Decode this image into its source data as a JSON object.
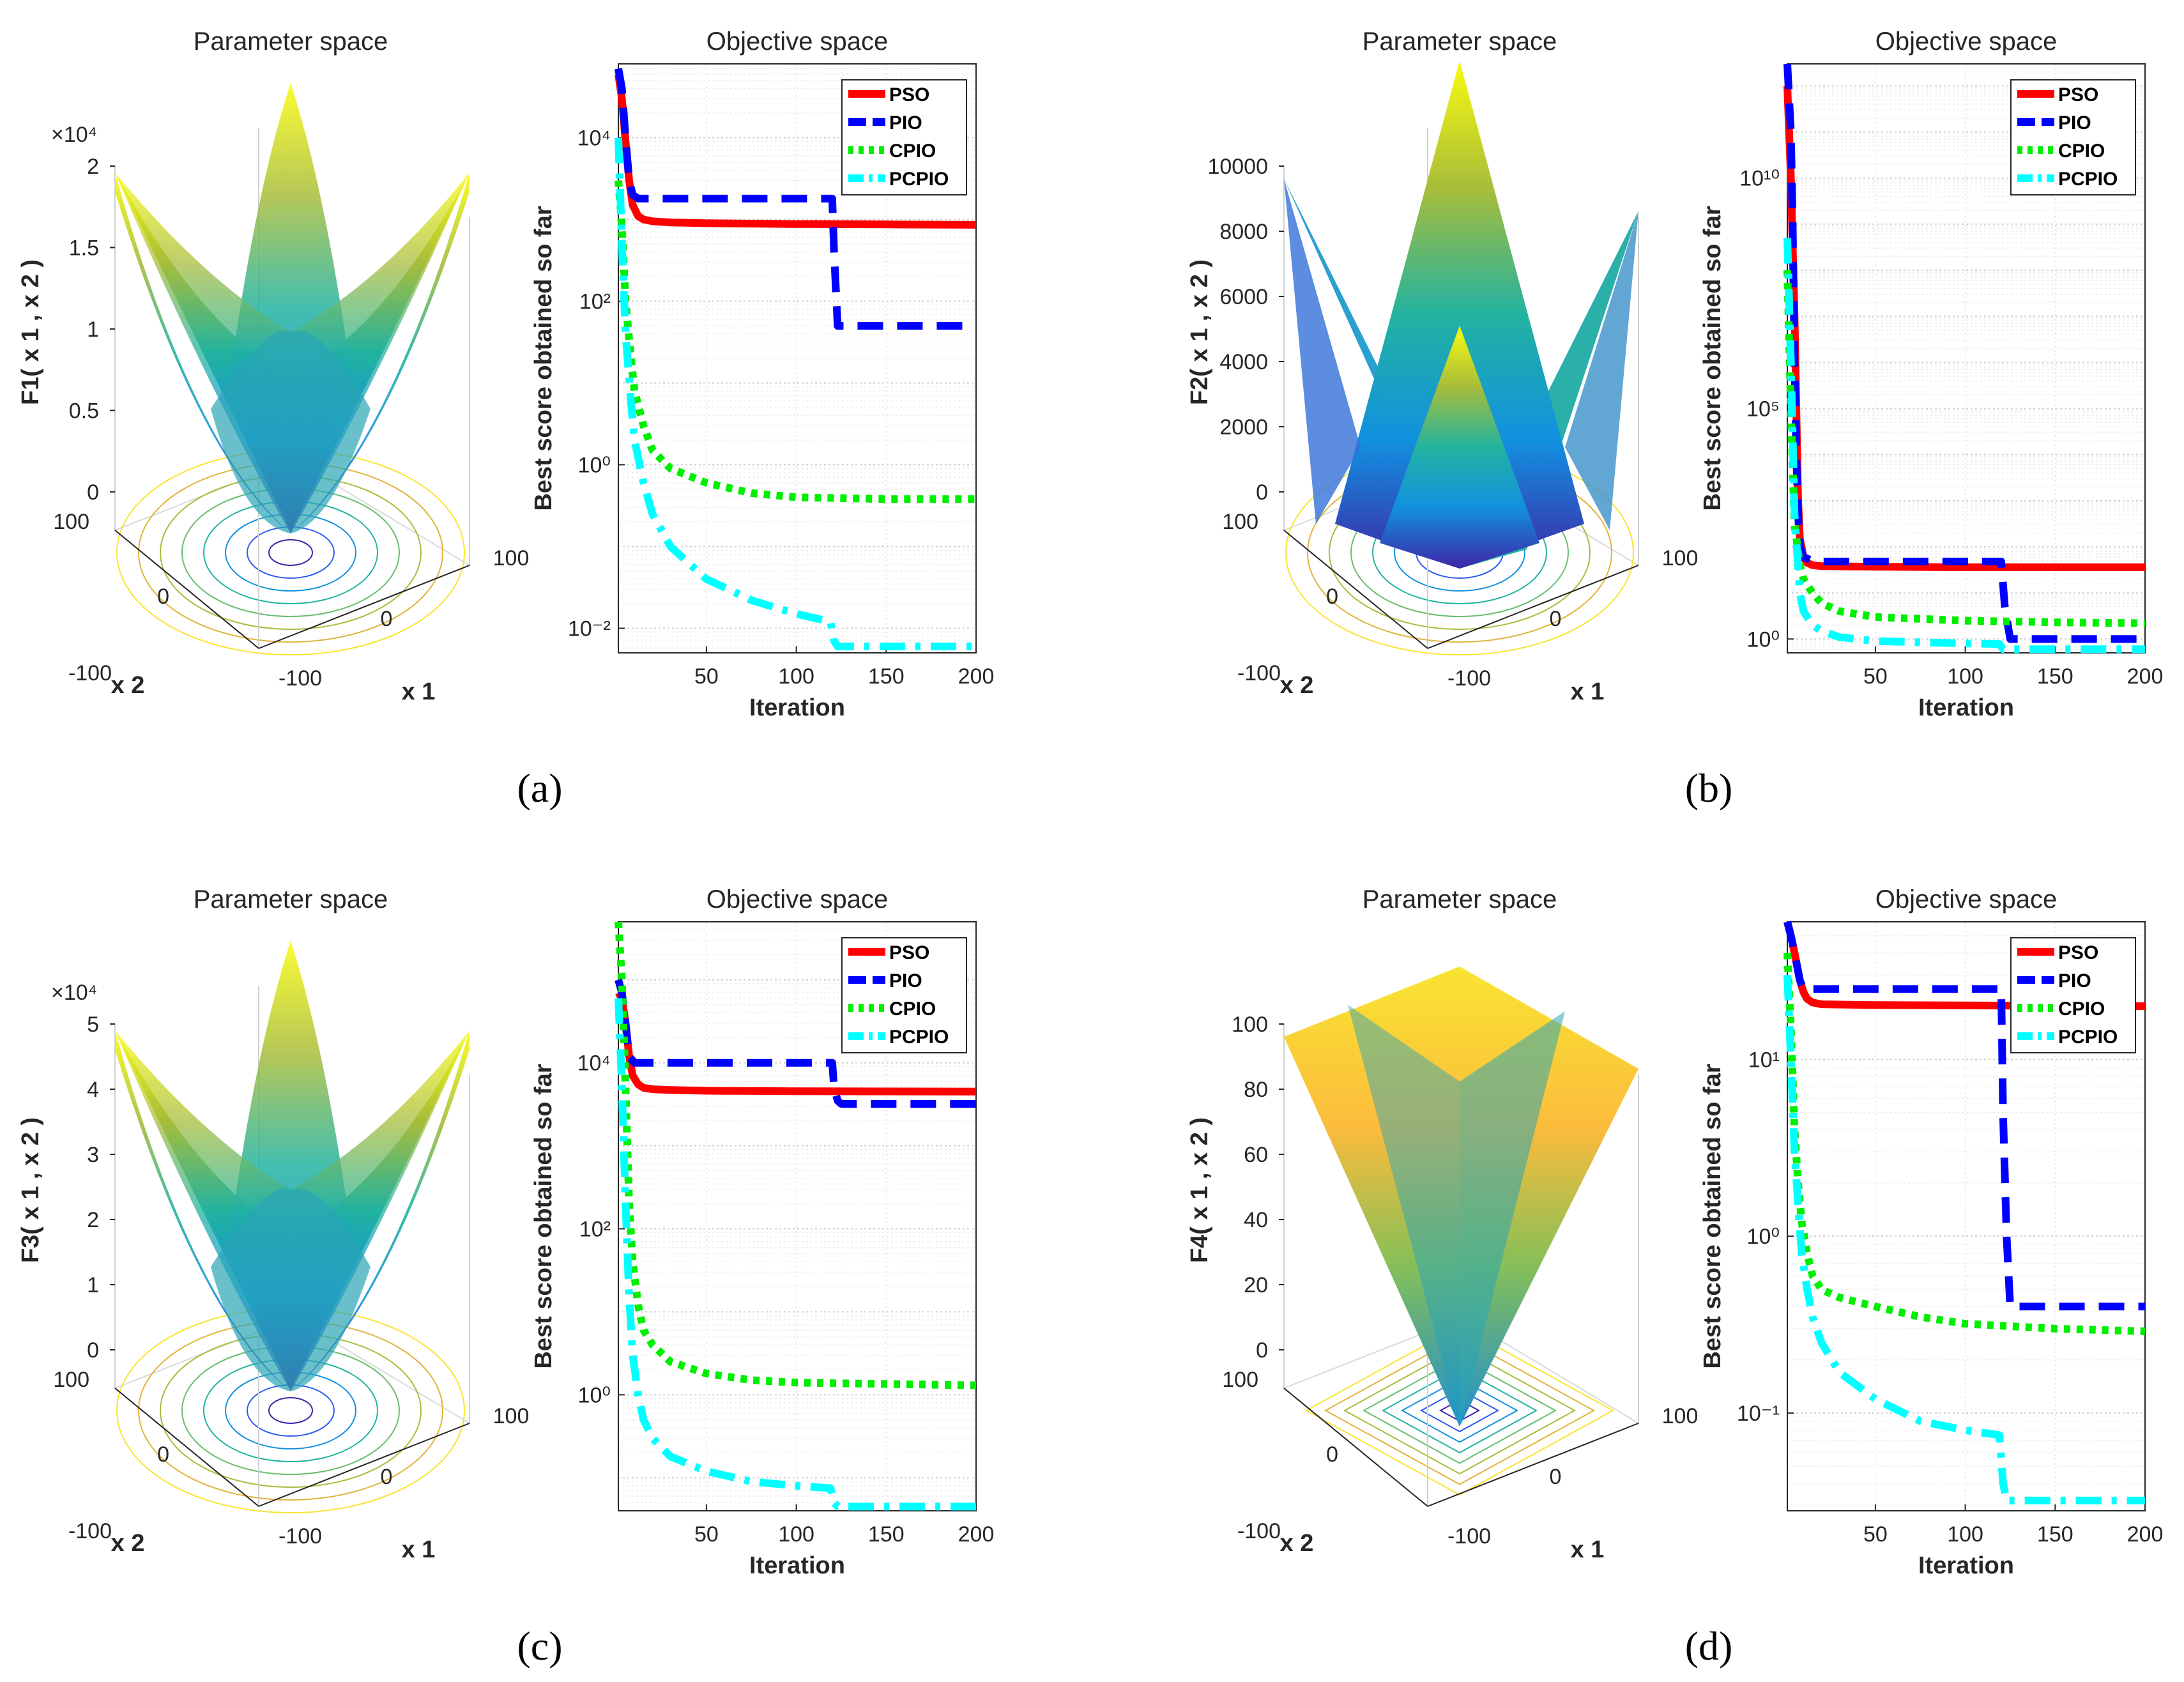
{
  "figure": {
    "panels": [
      {
        "caption": "(a)",
        "param_title": "Parameter space",
        "zlabel": "F1( x 1 , x 2 )",
        "z_ticks": [
          "0",
          "0.5",
          "1",
          "1.5",
          "2"
        ],
        "z_exp": "×10⁴",
        "surface": "bowl",
        "x1_label": "x 1",
        "x2_label": "x 2",
        "x1_ticks": [
          "-100",
          "0",
          "100"
        ],
        "x2_ticks": [
          "-100",
          "0",
          "100"
        ]
      },
      {
        "caption": "(b)",
        "param_title": "Parameter space",
        "zlabel": "F2( x 1 , x 2 )",
        "z_ticks": [
          "0",
          "2000",
          "4000",
          "6000",
          "8000",
          "10000"
        ],
        "z_exp": "",
        "surface": "saddle",
        "x1_label": "x 1",
        "x2_label": "x 2",
        "x1_ticks": [
          "-100",
          "0",
          "100"
        ],
        "x2_ticks": [
          "-100",
          "0",
          "100"
        ]
      },
      {
        "caption": "(c)",
        "param_title": "Parameter space",
        "zlabel": "F3( x 1 , x 2 )",
        "z_ticks": [
          "0",
          "1",
          "2",
          "3",
          "4",
          "5"
        ],
        "z_exp": "×10⁴",
        "surface": "bowl",
        "x1_label": "x 1",
        "x2_label": "x 2",
        "x1_ticks": [
          "-100",
          "0",
          "100"
        ],
        "x2_ticks": [
          "-100",
          "0",
          "100"
        ]
      },
      {
        "caption": "(d)",
        "param_title": "Parameter space",
        "zlabel": "F4( x 1 , x 2 )",
        "z_ticks": [
          "0",
          "20",
          "40",
          "60",
          "80",
          "100"
        ],
        "z_exp": "",
        "surface": "pyramid",
        "x1_label": "x 1",
        "x2_label": "x 2",
        "x1_ticks": [
          "-100",
          "0",
          "100"
        ],
        "x2_ticks": [
          "-100",
          "0",
          "100"
        ]
      }
    ]
  },
  "chart_data": [
    {
      "type": "line",
      "title": "Objective space",
      "xlabel": "Iteration",
      "ylabel": "Best score obtained so far",
      "yscale": "log",
      "xlim": [
        1,
        200
      ],
      "ylim": [
        0.005,
        80000
      ],
      "xticks": [
        50,
        100,
        150,
        200
      ],
      "yticks": [
        {
          "v": 0.01,
          "label": "10⁻²"
        },
        {
          "v": 1,
          "label": "10⁰"
        },
        {
          "v": 100,
          "label": "10²"
        },
        {
          "v": 10000,
          "label": "10⁴"
        }
      ],
      "series": [
        {
          "name": "PSO",
          "color": "#ff0000",
          "dash": "solid",
          "x": [
            1,
            3,
            5,
            7,
            9,
            12,
            15,
            20,
            30,
            50,
            100,
            150,
            200
          ],
          "y": [
            60000,
            30000,
            9000,
            3000,
            1500,
            1100,
            1000,
            950,
            920,
            900,
            880,
            870,
            860
          ]
        },
        {
          "name": "PIO",
          "color": "#0000ff",
          "dash": "dash",
          "x": [
            1,
            3,
            5,
            7,
            9,
            12,
            20,
            50,
            100,
            120,
            121,
            123,
            150,
            200
          ],
          "y": [
            70000,
            40000,
            10000,
            3000,
            2000,
            1800,
            1800,
            1800,
            1800,
            1800,
            400,
            50,
            50,
            50
          ]
        },
        {
          "name": "CPIO",
          "color": "#00ee00",
          "dash": "dot",
          "x": [
            1,
            3,
            5,
            8,
            10,
            15,
            20,
            30,
            50,
            75,
            100,
            150,
            200
          ],
          "y": [
            3000,
            800,
            100,
            20,
            8,
            3,
            1.5,
            0.9,
            0.6,
            0.45,
            0.4,
            0.38,
            0.38
          ]
        },
        {
          "name": "PCPIO",
          "color": "#00ffff",
          "dash": "dashdot",
          "x": [
            1,
            3,
            5,
            8,
            10,
            15,
            20,
            30,
            50,
            75,
            100,
            119,
            121,
            123,
            150,
            200
          ],
          "y": [
            10000,
            500,
            40,
            6,
            2,
            0.6,
            0.25,
            0.1,
            0.04,
            0.022,
            0.015,
            0.012,
            0.007,
            0.006,
            0.006,
            0.006
          ]
        }
      ]
    },
    {
      "type": "line",
      "title": "Objective space",
      "xlabel": "Iteration",
      "ylabel": "Best score obtained so far",
      "yscale": "log",
      "xlim": [
        1,
        200
      ],
      "ylim": [
        0.5,
        3000000000000.0
      ],
      "xticks": [
        50,
        100,
        150,
        200
      ],
      "yticks": [
        {
          "v": 1,
          "label": "10⁰"
        },
        {
          "v": 100000,
          "label": "10⁵"
        },
        {
          "v": 10000000000,
          "label": "10¹⁰"
        }
      ],
      "series": [
        {
          "name": "PSO",
          "color": "#ff0000",
          "dash": "solid",
          "x": [
            1,
            3,
            5,
            6,
            7,
            8,
            10,
            12,
            15,
            20,
            50,
            100,
            150,
            200
          ],
          "y": [
            1000000000000.0,
            10000000000.0,
            10000000.0,
            100000.0,
            1000.0,
            150,
            60,
            45,
            40,
            38,
            37,
            36,
            36,
            36
          ]
        },
        {
          "name": "PIO",
          "color": "#0000ff",
          "dash": "dash",
          "x": [
            1,
            3,
            4,
            5,
            6,
            7,
            8,
            10,
            15,
            20,
            50,
            100,
            120,
            122,
            125,
            150,
            200
          ],
          "y": [
            3000000000000.0,
            100000000000.0,
            1000000000.0,
            1000000.0,
            10000.0,
            500,
            100,
            60,
            50,
            48,
            48,
            48,
            48,
            5,
            1,
            1,
            1
          ]
        },
        {
          "name": "CPIO",
          "color": "#00ee00",
          "dash": "dot",
          "x": [
            1,
            3,
            5,
            8,
            10,
            15,
            20,
            30,
            50,
            100,
            150,
            200
          ],
          "y": [
            100000000.0,
            100000.0,
            300,
            40,
            20,
            10,
            6,
            4,
            3,
            2.5,
            2.3,
            2.2
          ]
        },
        {
          "name": "PCPIO",
          "color": "#00ffff",
          "dash": "dashdot",
          "x": [
            1,
            3,
            5,
            8,
            10,
            15,
            20,
            30,
            50,
            100,
            119,
            121,
            150,
            200
          ],
          "y": [
            500000000.0,
            1000000.0,
            500,
            10,
            4,
            2,
            1.5,
            1.1,
            0.9,
            0.8,
            0.78,
            0.6,
            0.6,
            0.6
          ]
        }
      ]
    },
    {
      "type": "line",
      "title": "Objective space",
      "xlabel": "Iteration",
      "ylabel": "Best score obtained so far",
      "yscale": "log",
      "xlim": [
        1,
        200
      ],
      "ylim": [
        0.04,
        500000
      ],
      "xticks": [
        50,
        100,
        150,
        200
      ],
      "yticks": [
        {
          "v": 1,
          "label": "10⁰"
        },
        {
          "v": 100,
          "label": "10²"
        },
        {
          "v": 10000,
          "label": "10⁴"
        }
      ],
      "series": [
        {
          "name": "PSO",
          "color": "#ff0000",
          "dash": "solid",
          "x": [
            1,
            3,
            5,
            7,
            9,
            12,
            15,
            20,
            30,
            50,
            100,
            150,
            200
          ],
          "y": [
            70000,
            60000,
            30000,
            12000,
            7000,
            5500,
            5000,
            4800,
            4700,
            4600,
            4550,
            4520,
            4500
          ]
        },
        {
          "name": "PIO",
          "color": "#0000ff",
          "dash": "dash",
          "x": [
            1,
            3,
            5,
            7,
            10,
            15,
            20,
            50,
            100,
            120,
            121,
            123,
            125,
            150,
            200
          ],
          "y": [
            100000,
            70000,
            30000,
            12000,
            10000,
            10000,
            10000,
            10000,
            10000,
            10000,
            5000,
            3500,
            3200,
            3200,
            3200
          ]
        },
        {
          "name": "CPIO",
          "color": "#00ee00",
          "dash": "dot",
          "x": [
            1,
            3,
            5,
            7,
            9,
            12,
            15,
            20,
            30,
            50,
            75,
            100,
            150,
            200
          ],
          "y": [
            500000,
            100000,
            5000,
            200,
            40,
            12,
            6,
            4,
            2.5,
            1.8,
            1.5,
            1.4,
            1.35,
            1.3
          ]
        },
        {
          "name": "PCPIO",
          "color": "#00ffff",
          "dash": "dashdot",
          "x": [
            1,
            3,
            5,
            7,
            9,
            12,
            15,
            20,
            30,
            50,
            75,
            100,
            119,
            121,
            123,
            150,
            200
          ],
          "y": [
            60000,
            5000,
            200,
            15,
            3,
            1,
            0.5,
            0.3,
            0.18,
            0.12,
            0.09,
            0.08,
            0.075,
            0.05,
            0.045,
            0.045,
            0.045
          ]
        }
      ]
    },
    {
      "type": "line",
      "title": "Objective space",
      "xlabel": "Iteration",
      "ylabel": "Best score obtained so far",
      "yscale": "log",
      "xlim": [
        1,
        200
      ],
      "ylim": [
        0.028,
        60
      ],
      "xticks": [
        50,
        100,
        150,
        200
      ],
      "yticks": [
        {
          "v": 0.1,
          "label": "10⁻¹"
        },
        {
          "v": 1,
          "label": "10⁰"
        },
        {
          "v": 10,
          "label": "10¹"
        }
      ],
      "series": [
        {
          "name": "PSO",
          "color": "#ff0000",
          "dash": "solid",
          "x": [
            1,
            3,
            5,
            8,
            10,
            12,
            15,
            20,
            50,
            100,
            150,
            200
          ],
          "y": [
            60,
            50,
            40,
            28,
            24,
            22,
            21,
            20.5,
            20.3,
            20.2,
            20.1,
            20
          ]
        },
        {
          "name": "PIO",
          "color": "#0000ff",
          "dash": "dash",
          "x": [
            1,
            3,
            5,
            8,
            10,
            15,
            20,
            50,
            100,
            120,
            121,
            123,
            125,
            150,
            200
          ],
          "y": [
            60,
            50,
            40,
            28,
            25,
            25,
            25,
            25,
            25,
            25,
            5,
            1,
            0.4,
            0.4,
            0.4
          ]
        },
        {
          "name": "CPIO",
          "color": "#00ee00",
          "dash": "dot",
          "x": [
            1,
            3,
            5,
            7,
            9,
            12,
            15,
            20,
            30,
            50,
            75,
            100,
            150,
            200
          ],
          "y": [
            40,
            15,
            4,
            2,
            1.2,
            0.8,
            0.6,
            0.5,
            0.45,
            0.4,
            0.35,
            0.32,
            0.3,
            0.29
          ]
        },
        {
          "name": "PCPIO",
          "color": "#00ffff",
          "dash": "dashdot",
          "x": [
            1,
            3,
            5,
            7,
            9,
            12,
            15,
            20,
            30,
            50,
            75,
            100,
            119,
            121,
            123,
            150,
            200
          ],
          "y": [
            30,
            10,
            3,
            1.5,
            0.8,
            0.5,
            0.35,
            0.25,
            0.17,
            0.12,
            0.09,
            0.08,
            0.075,
            0.04,
            0.032,
            0.032,
            0.032
          ]
        }
      ]
    }
  ]
}
